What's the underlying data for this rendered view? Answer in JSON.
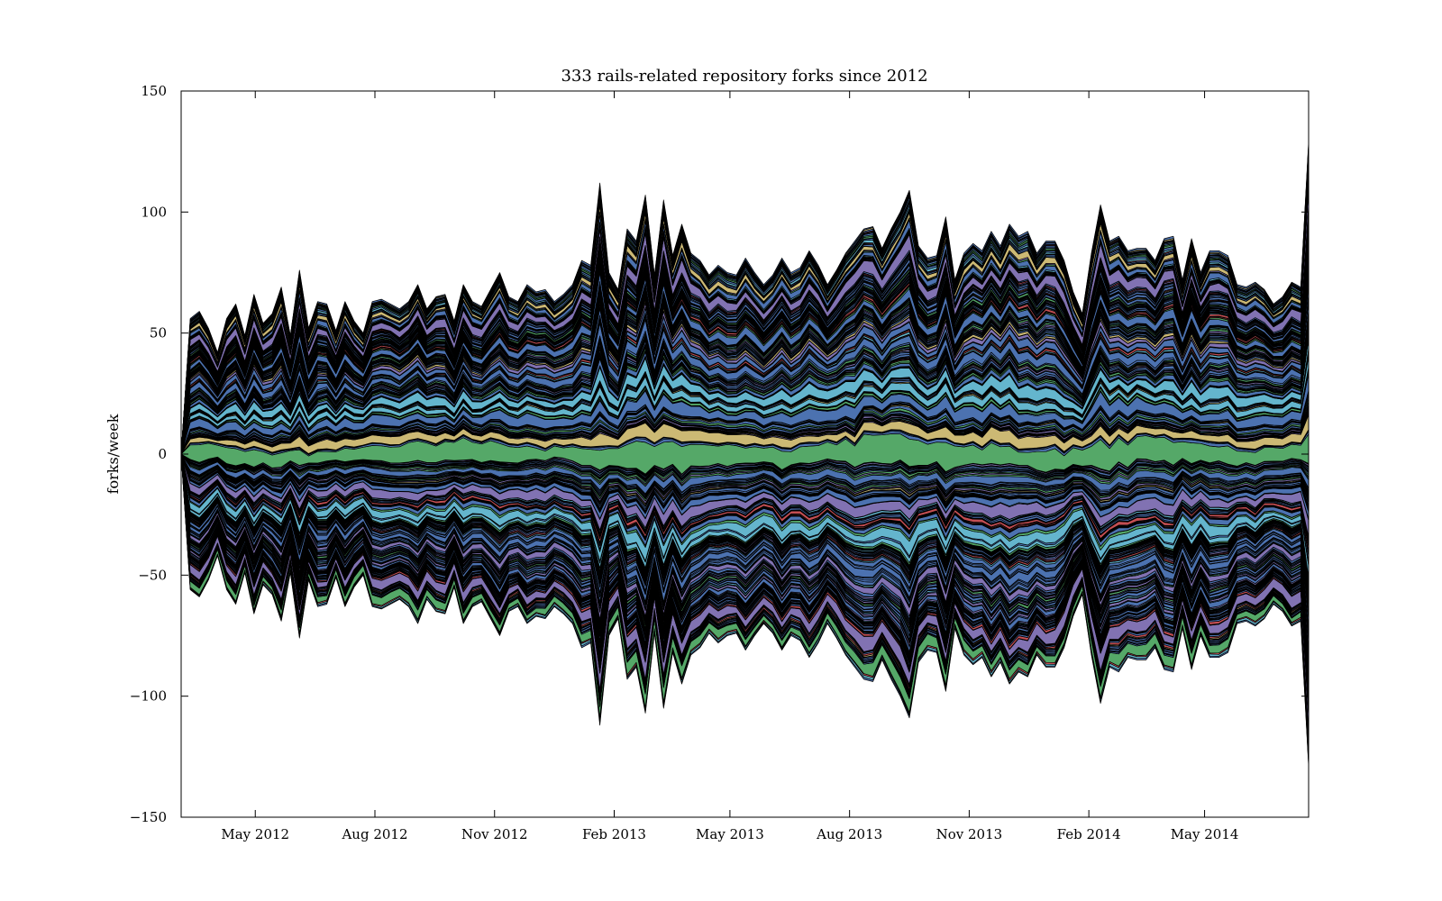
{
  "chart_data": {
    "type": "area",
    "subtype": "streamgraph",
    "title": "333 rails-related repository forks since 2012",
    "xlabel": "",
    "ylabel": "forks/week",
    "ylim": [
      -150,
      150
    ],
    "xlim": [
      "2012-03-05",
      "2014-07-20"
    ],
    "yticks": [
      150,
      100,
      50,
      0,
      -50,
      -100,
      -150
    ],
    "ytick_labels": [
      "150",
      "100",
      "50",
      "0",
      "−50",
      "−100",
      "−150"
    ],
    "xticks": [
      {
        "date": "2012-05-01",
        "label": "May 2012"
      },
      {
        "date": "2012-08-01",
        "label": "Aug 2012"
      },
      {
        "date": "2012-11-01",
        "label": "Nov 2012"
      },
      {
        "date": "2013-02-01",
        "label": "Feb 2013"
      },
      {
        "date": "2013-05-01",
        "label": "May 2013"
      },
      {
        "date": "2013-08-01",
        "label": "Aug 2013"
      },
      {
        "date": "2013-11-01",
        "label": "Nov 2013"
      },
      {
        "date": "2014-02-01",
        "label": "Feb 2014"
      },
      {
        "date": "2014-05-01",
        "label": "May 2014"
      }
    ],
    "series_count": 333,
    "palette": [
      "#4C72B0",
      "#55A868",
      "#C44E52",
      "#8172B2",
      "#CCB974",
      "#64B5CD"
    ],
    "grid": false,
    "legend": "none",
    "envelope": {
      "note_free": true,
      "dates": [
        "2012-03-05",
        "2012-03-12",
        "2012-03-19",
        "2012-03-26",
        "2012-04-02",
        "2012-04-09",
        "2012-04-16",
        "2012-04-23",
        "2012-04-30",
        "2012-05-07",
        "2012-05-14",
        "2012-05-21",
        "2012-05-28",
        "2012-06-04",
        "2012-06-11",
        "2012-06-18",
        "2012-06-25",
        "2012-07-02",
        "2012-07-09",
        "2012-07-16",
        "2012-07-23",
        "2012-07-30",
        "2012-08-06",
        "2012-08-13",
        "2012-08-20",
        "2012-08-27",
        "2012-09-03",
        "2012-09-10",
        "2012-09-17",
        "2012-09-24",
        "2012-10-01",
        "2012-10-08",
        "2012-10-15",
        "2012-10-22",
        "2012-10-29",
        "2012-11-05",
        "2012-11-12",
        "2012-11-19",
        "2012-11-26",
        "2012-12-03",
        "2012-12-10",
        "2012-12-17",
        "2012-12-24",
        "2012-12-31",
        "2013-01-07",
        "2013-01-14",
        "2013-01-21",
        "2013-01-28",
        "2013-02-04",
        "2013-02-11",
        "2013-02-18",
        "2013-02-25",
        "2013-03-04",
        "2013-03-11",
        "2013-03-18",
        "2013-03-25",
        "2013-04-01",
        "2013-04-08",
        "2013-04-15",
        "2013-04-22",
        "2013-04-29",
        "2013-05-06",
        "2013-05-13",
        "2013-05-20",
        "2013-05-27",
        "2013-06-03",
        "2013-06-10",
        "2013-06-17",
        "2013-06-24",
        "2013-07-01",
        "2013-07-08",
        "2013-07-15",
        "2013-07-22",
        "2013-07-29",
        "2013-08-05",
        "2013-08-12",
        "2013-08-19",
        "2013-08-26",
        "2013-09-02",
        "2013-09-09",
        "2013-09-16",
        "2013-09-23",
        "2013-09-30",
        "2013-10-07",
        "2013-10-14",
        "2013-10-21",
        "2013-10-28",
        "2013-11-04",
        "2013-11-11",
        "2013-11-18",
        "2013-11-25",
        "2013-12-02",
        "2013-12-09",
        "2013-12-16",
        "2013-12-23",
        "2013-12-30",
        "2014-01-06",
        "2014-01-13",
        "2014-01-20",
        "2014-01-27",
        "2014-02-03",
        "2014-02-10",
        "2014-02-17",
        "2014-02-24",
        "2014-03-03",
        "2014-03-10",
        "2014-03-17",
        "2014-03-24",
        "2014-03-31",
        "2014-04-07",
        "2014-04-14",
        "2014-04-21",
        "2014-04-28",
        "2014-05-05",
        "2014-05-12",
        "2014-05-19",
        "2014-05-26",
        "2014-06-02",
        "2014-06-09",
        "2014-06-16",
        "2014-06-23",
        "2014-06-30",
        "2014-07-07",
        "2014-07-14",
        "2014-07-20"
      ],
      "total": [
        0,
        112,
        118,
        104,
        84,
        112,
        124,
        98,
        132,
        108,
        116,
        138,
        98,
        152,
        104,
        126,
        124,
        102,
        126,
        110,
        100,
        126,
        128,
        124,
        120,
        126,
        140,
        120,
        130,
        132,
        110,
        140,
        126,
        122,
        136,
        150,
        130,
        126,
        140,
        134,
        136,
        126,
        132,
        140,
        160,
        156,
        224,
        150,
        136,
        186,
        176,
        214,
        148,
        210,
        164,
        190,
        166,
        160,
        148,
        156,
        150,
        148,
        162,
        150,
        140,
        148,
        162,
        150,
        154,
        168,
        156,
        140,
        152,
        166,
        176,
        186,
        188,
        170,
        186,
        200,
        218,
        172,
        162,
        164,
        196,
        144,
        166,
        174,
        168,
        184,
        172,
        190,
        180,
        184,
        166,
        176,
        176,
        160,
        134,
        116,
        166,
        206,
        176,
        180,
        168,
        170,
        170,
        160,
        178,
        180,
        144,
        178,
        150,
        168,
        168,
        164,
        140,
        138,
        142,
        136,
        124,
        130,
        142,
        138,
        258
      ]
    }
  }
}
